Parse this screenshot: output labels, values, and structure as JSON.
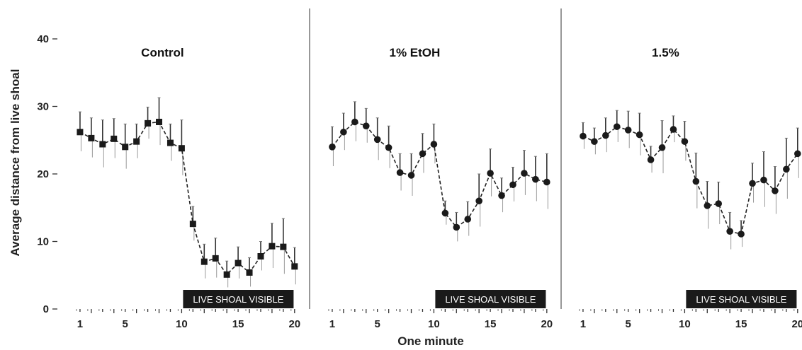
{
  "figure": {
    "ylabel": "Average distance from live shoal",
    "xlabel": "One minute",
    "badge_text": "LIVE SHOAL VISIBLE",
    "y_ticks": [
      "0",
      "10",
      "20",
      "30",
      "40"
    ],
    "x_ticks": [
      "1",
      "5",
      "10",
      "15",
      "20"
    ]
  },
  "chart_data": [
    {
      "type": "line",
      "title": "Control",
      "x": [
        1,
        2,
        3,
        4,
        5,
        6,
        7,
        8,
        9,
        10,
        11,
        12,
        13,
        14,
        15,
        16,
        17,
        18,
        19,
        20
      ],
      "values": [
        26.2,
        25.3,
        24.4,
        25.2,
        24.0,
        24.8,
        27.5,
        27.7,
        24.6,
        23.8,
        12.6,
        7.0,
        7.5,
        5.1,
        6.8,
        5.4,
        7.8,
        9.3,
        9.2,
        6.3
      ],
      "error": [
        3.0,
        3.0,
        3.6,
        3.0,
        3.4,
        2.6,
        2.4,
        3.6,
        2.8,
        4.2,
        2.6,
        2.6,
        3.0,
        2.0,
        2.4,
        2.2,
        2.2,
        3.4,
        4.2,
        2.8
      ],
      "ylim": [
        0,
        42
      ],
      "xlim": [
        0,
        20.5
      ]
    },
    {
      "type": "line",
      "title": "1% EtOH",
      "x": [
        1,
        2,
        3,
        4,
        5,
        6,
        7,
        8,
        9,
        10,
        11,
        12,
        13,
        14,
        15,
        16,
        17,
        18,
        19,
        20
      ],
      "values": [
        24.0,
        26.2,
        27.7,
        27.1,
        25.1,
        23.9,
        20.2,
        19.8,
        23.0,
        24.4,
        14.2,
        12.1,
        13.3,
        16.0,
        20.1,
        16.8,
        18.4,
        20.1,
        19.2,
        18.8
      ],
      "error": [
        3.0,
        2.8,
        3.0,
        2.6,
        3.2,
        3.2,
        2.8,
        3.2,
        3.0,
        3.0,
        1.8,
        2.2,
        2.6,
        4.0,
        3.6,
        2.6,
        2.6,
        3.4,
        3.4,
        4.2
      ],
      "ylim": [
        0,
        42
      ],
      "xlim": [
        0,
        20.5
      ]
    },
    {
      "type": "line",
      "title": "1.5%",
      "x": [
        1,
        2,
        3,
        4,
        5,
        6,
        7,
        8,
        9,
        10,
        11,
        12,
        13,
        14,
        15,
        16,
        17,
        18,
        19,
        20
      ],
      "values": [
        25.6,
        24.8,
        25.7,
        27.0,
        26.5,
        25.8,
        22.1,
        23.9,
        26.6,
        24.8,
        18.9,
        15.3,
        15.6,
        11.5,
        11.1,
        18.6,
        19.1,
        17.5,
        20.7,
        23.0
      ],
      "error": [
        2.0,
        2.0,
        2.6,
        2.4,
        2.8,
        3.2,
        2.0,
        4.0,
        2.0,
        3.0,
        4.2,
        3.6,
        3.2,
        2.8,
        2.0,
        3.0,
        4.2,
        3.6,
        4.6,
        3.8
      ],
      "ylim": [
        0,
        42
      ],
      "xlim": [
        0,
        20.5
      ]
    }
  ]
}
